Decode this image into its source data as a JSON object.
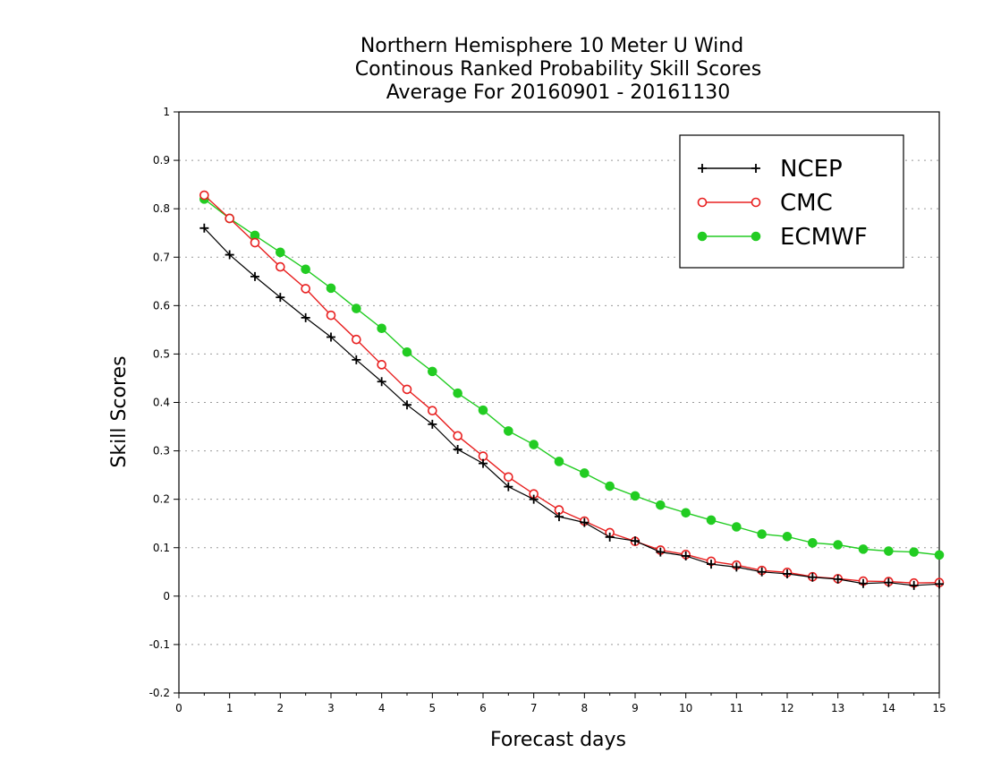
{
  "chart_data": {
    "type": "line",
    "title": [
      "Northern Hemisphere 10 Meter U Wind",
      "Continous Ranked Probability Skill Scores",
      "Average For 20160901 - 20161130"
    ],
    "xlabel": "Forecast days",
    "ylabel": "Skill Scores",
    "xlim": [
      0,
      15
    ],
    "ylim": [
      -0.2,
      1
    ],
    "xticks": [
      0,
      1,
      2,
      3,
      4,
      5,
      6,
      7,
      8,
      9,
      10,
      11,
      12,
      13,
      14,
      15
    ],
    "yticks": [
      -0.2,
      -0.1,
      0,
      0.1,
      0.2,
      0.3,
      0.4,
      0.5,
      0.6,
      0.7,
      0.8,
      0.9,
      1
    ],
    "ytick_labels": [
      "-0.2",
      "-0.1",
      "0",
      "0.1",
      "0.2",
      "0.3",
      "0.4",
      "0.5",
      "0.6",
      "0.7",
      "0.8",
      "0.9",
      "1"
    ],
    "grid": "horizontal dotted",
    "legend_position": "top-right",
    "x": [
      0.5,
      1,
      1.5,
      2,
      2.5,
      3,
      3.5,
      4,
      4.5,
      5,
      5.5,
      6,
      6.5,
      7,
      7.5,
      8,
      8.5,
      9,
      9.5,
      10,
      10.5,
      11,
      11.5,
      12,
      12.5,
      13,
      13.5,
      14,
      14.5,
      15
    ],
    "series": [
      {
        "name": "NCEP",
        "color": "#000000",
        "marker": "plus",
        "values": [
          0.76,
          0.705,
          0.66,
          0.617,
          0.575,
          0.535,
          0.488,
          0.443,
          0.395,
          0.355,
          0.303,
          0.274,
          0.226,
          0.2,
          0.164,
          0.152,
          0.122,
          0.114,
          0.091,
          0.083,
          0.066,
          0.06,
          0.05,
          0.046,
          0.039,
          0.035,
          0.026,
          0.028,
          0.022,
          0.025
        ]
      },
      {
        "name": "CMC",
        "color": "#e82020",
        "marker": "open-circle",
        "values": [
          0.828,
          0.78,
          0.73,
          0.68,
          0.635,
          0.58,
          0.53,
          0.478,
          0.427,
          0.383,
          0.331,
          0.289,
          0.246,
          0.211,
          0.178,
          0.155,
          0.131,
          0.113,
          0.095,
          0.086,
          0.072,
          0.064,
          0.053,
          0.049,
          0.04,
          0.036,
          0.031,
          0.03,
          0.027,
          0.028
        ]
      },
      {
        "name": "ECMWF",
        "color": "#22cc22",
        "marker": "filled-circle",
        "values": [
          0.82,
          0.78,
          0.745,
          0.71,
          0.675,
          0.636,
          0.594,
          0.553,
          0.504,
          0.464,
          0.419,
          0.384,
          0.341,
          0.313,
          0.278,
          0.254,
          0.227,
          0.207,
          0.188,
          0.172,
          0.157,
          0.143,
          0.128,
          0.123,
          0.11,
          0.106,
          0.097,
          0.093,
          0.091,
          0.085
        ]
      }
    ]
  }
}
